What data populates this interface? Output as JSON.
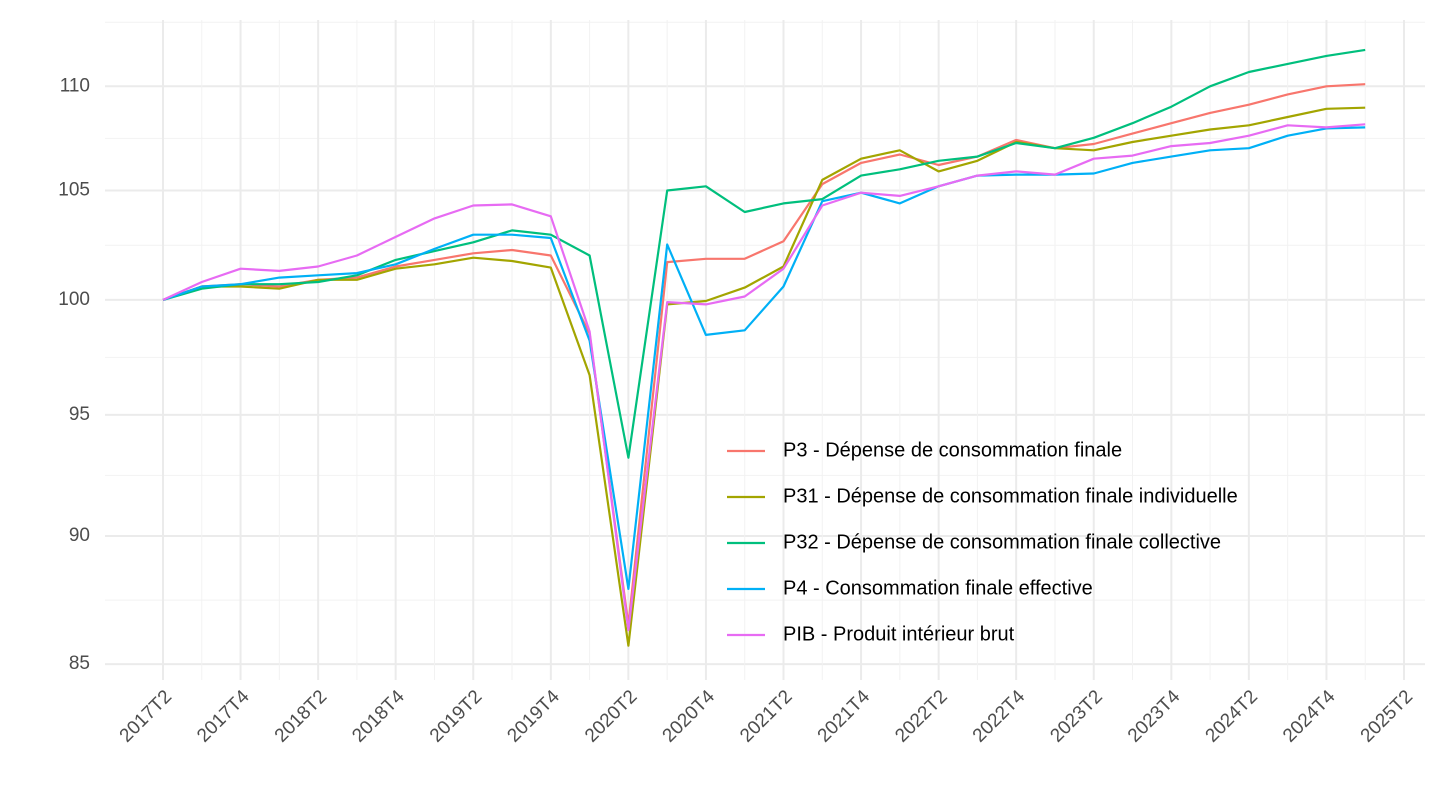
{
  "chart_data": {
    "type": "line",
    "log_scale_y": true,
    "grid": true,
    "legend_position": "inside",
    "categories": [
      "2017T2",
      null,
      "2017T4",
      null,
      "2018T2",
      null,
      "2018T4",
      null,
      "2019T2",
      null,
      "2019T4",
      null,
      "2020T2",
      null,
      "2020T4",
      null,
      "2021T2",
      null,
      "2021T4",
      null,
      "2022T2",
      null,
      "2022T4",
      null,
      "2023T2",
      null,
      "2023T4",
      null,
      "2024T2",
      null,
      "2024T4",
      null,
      "2025T2"
    ],
    "ylim": [
      84.4,
      113.3
    ],
    "yticks": [
      85,
      90,
      95,
      100,
      105,
      110
    ],
    "series": [
      {
        "name": "P3 - Dépense de consommation finale",
        "color": "#F8766D",
        "values": [
          100,
          100.6,
          100.7,
          100.6,
          100.9,
          101.0,
          101.5,
          101.8,
          102.1,
          102.25,
          102.0,
          98.5,
          86.5,
          101.7,
          101.85,
          101.85,
          102.65,
          105.3,
          106.3,
          106.7,
          106.2,
          106.6,
          107.4,
          107.0,
          107.2,
          107.7,
          108.2,
          108.7,
          109.1,
          109.6,
          110.0,
          110.1,
          null
        ]
      },
      {
        "name": "P31 - Dépense de consommation finale individuelle",
        "color": "#A3A500",
        "values": [
          100,
          100.6,
          100.6,
          100.5,
          100.9,
          100.9,
          101.4,
          101.6,
          101.9,
          101.75,
          101.45,
          96.7,
          85.7,
          99.8,
          99.95,
          100.55,
          101.5,
          105.5,
          106.5,
          106.9,
          105.9,
          106.4,
          107.3,
          107.0,
          106.9,
          107.3,
          107.6,
          107.9,
          108.1,
          108.5,
          108.9,
          108.95,
          null
        ]
      },
      {
        "name": "P32 - Dépense de consommation finale collective",
        "color": "#00BF7D",
        "values": [
          100,
          100.5,
          100.7,
          100.7,
          100.8,
          101.1,
          101.8,
          102.2,
          102.6,
          103.15,
          102.95,
          102.0,
          93.2,
          105.0,
          105.2,
          104.0,
          104.4,
          104.6,
          105.7,
          106.0,
          106.4,
          106.6,
          107.25,
          107.0,
          107.5,
          108.2,
          109.0,
          110.0,
          110.7,
          111.1,
          111.5,
          111.8,
          null
        ]
      },
      {
        "name": "P4 - Consommation finale effective",
        "color": "#00B0F6",
        "values": [
          100,
          100.6,
          100.7,
          101.0,
          101.1,
          101.2,
          101.6,
          102.3,
          102.95,
          102.95,
          102.8,
          98.2,
          87.9,
          102.5,
          98.45,
          98.65,
          100.6,
          104.5,
          104.9,
          104.4,
          105.2,
          105.7,
          105.75,
          105.75,
          105.8,
          106.3,
          106.6,
          106.9,
          107.0,
          107.6,
          107.95,
          108.0,
          null
        ]
      },
      {
        "name": "PIB - Produit intérieur brut",
        "color": "#E76BF3",
        "values": [
          100,
          100.8,
          101.4,
          101.3,
          101.5,
          102.0,
          102.85,
          103.7,
          104.3,
          104.35,
          103.8,
          98.6,
          86.3,
          99.9,
          99.8,
          100.15,
          101.4,
          104.3,
          104.9,
          104.75,
          105.2,
          105.7,
          105.9,
          105.75,
          106.5,
          106.65,
          107.1,
          107.25,
          107.6,
          108.1,
          108.0,
          108.15,
          null
        ]
      }
    ]
  }
}
